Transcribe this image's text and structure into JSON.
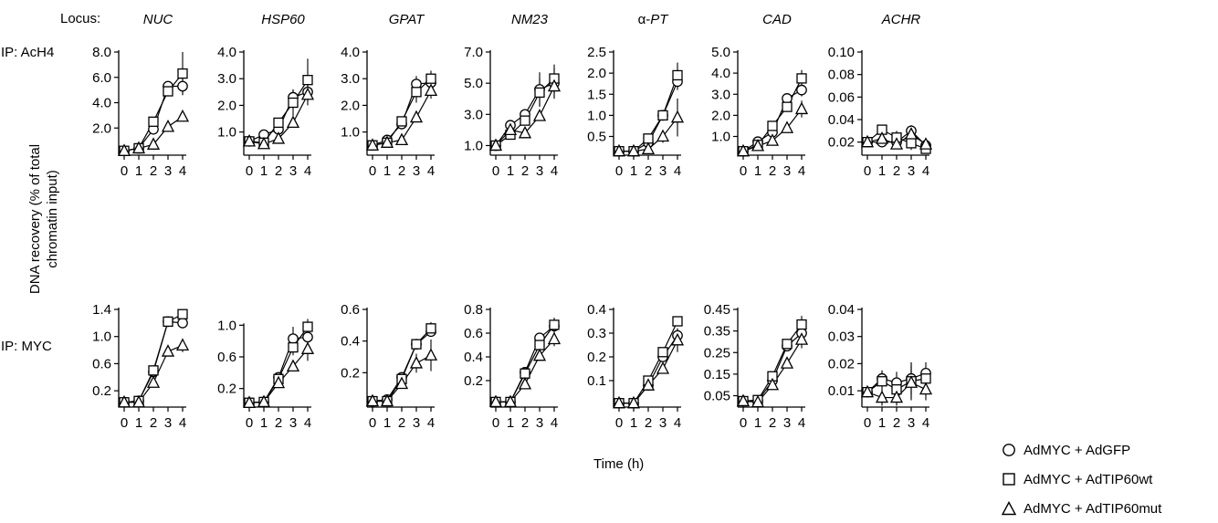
{
  "figure": {
    "locus_label": "Locus:",
    "ip_top_label": "IP: AcH4",
    "ip_bottom_label": "IP: MYC",
    "y_axis_label_line1": "DNA recovery (% of total",
    "y_axis_label_line2": "chromatin input)",
    "x_axis_label": "Time (h)",
    "loci": [
      "NUC",
      "HSP60",
      "GPAT",
      "NM23",
      "α-PT",
      "CAD",
      "ACHR"
    ],
    "legend": [
      {
        "marker": "circle",
        "label": "AdMYC + AdGFP"
      },
      {
        "marker": "square",
        "label": "AdMYC + AdTIP60wt"
      },
      {
        "marker": "triangle",
        "label": "AdMYC + AdTIP60mut"
      }
    ],
    "colors": {
      "line": "#000000",
      "marker_fill": "#ffffff"
    }
  },
  "chart_data": [
    {
      "type": "line",
      "row": "IP: AcH4",
      "locus": "NUC",
      "x": [
        0,
        1,
        2,
        3,
        4
      ],
      "ylim": [
        0,
        8.0
      ],
      "yticks": [
        2.0,
        4.0,
        6.0,
        8.0
      ],
      "ytick_labels": [
        "2.0",
        "4.0",
        "6.0",
        "8.0"
      ],
      "series": [
        {
          "name": "AdMYC + AdGFP",
          "values": [
            0.2,
            0.4,
            1.9,
            5.3,
            5.3
          ],
          "err": [
            0,
            0,
            0,
            0.3,
            0.7
          ]
        },
        {
          "name": "AdMYC + AdTIP60wt",
          "values": [
            0.2,
            0.4,
            2.5,
            4.9,
            6.3
          ],
          "err": [
            0,
            0,
            0,
            0.4,
            1.7
          ]
        },
        {
          "name": "AdMYC + AdTIP60mut",
          "values": [
            0.2,
            0.4,
            0.7,
            2.1,
            2.9
          ],
          "err": [
            0,
            0,
            0,
            0,
            0
          ]
        }
      ]
    },
    {
      "type": "line",
      "row": "IP: AcH4",
      "locus": "HSP60",
      "x": [
        0,
        1,
        2,
        3,
        4
      ],
      "ylim": [
        0.2,
        4.0
      ],
      "yticks": [
        1.0,
        2.0,
        3.0,
        4.0
      ],
      "ytick_labels": [
        "1.0",
        "2.0",
        "3.0",
        "4.0"
      ],
      "series": [
        {
          "name": "AdMYC + AdGFP",
          "values": [
            0.65,
            0.9,
            1.1,
            2.3,
            2.5
          ],
          "err": [
            0,
            0,
            0,
            0.3,
            0.3
          ]
        },
        {
          "name": "AdMYC + AdTIP60wt",
          "values": [
            0.65,
            0.6,
            1.35,
            2.1,
            2.95
          ],
          "err": [
            0,
            0,
            0,
            0.5,
            0.8
          ]
        },
        {
          "name": "AdMYC + AdTIP60mut",
          "values": [
            0.65,
            0.55,
            0.75,
            1.35,
            2.4
          ],
          "err": [
            0,
            0,
            0,
            0,
            0.4
          ]
        }
      ]
    },
    {
      "type": "line",
      "row": "IP: AcH4",
      "locus": "GPAT",
      "x": [
        0,
        1,
        2,
        3,
        4
      ],
      "ylim": [
        0.2,
        4.0
      ],
      "yticks": [
        1.0,
        2.0,
        3.0,
        4.0
      ],
      "ytick_labels": [
        "1.0",
        "2.0",
        "3.0",
        "4.0"
      ],
      "series": [
        {
          "name": "AdMYC + AdGFP",
          "values": [
            0.5,
            0.7,
            1.3,
            2.8,
            2.85
          ],
          "err": [
            0,
            0,
            0,
            0.3,
            0.3
          ]
        },
        {
          "name": "AdMYC + AdTIP60wt",
          "values": [
            0.5,
            0.6,
            1.4,
            2.5,
            3.0
          ],
          "err": [
            0,
            0,
            0,
            0.4,
            0.3
          ]
        },
        {
          "name": "AdMYC + AdTIP60mut",
          "values": [
            0.5,
            0.6,
            0.7,
            1.55,
            2.55
          ],
          "err": [
            0,
            0,
            0,
            0,
            0.3
          ]
        }
      ]
    },
    {
      "type": "line",
      "row": "IP: AcH4",
      "locus": "NM23",
      "x": [
        0,
        1,
        2,
        3,
        4
      ],
      "ylim": [
        0.5,
        7.0
      ],
      "yticks": [
        1.0,
        3.0,
        5.0,
        7.0
      ],
      "ytick_labels": [
        "1.0",
        "3.0",
        "5.0",
        "7.0"
      ],
      "series": [
        {
          "name": "AdMYC + AdGFP",
          "values": [
            1.0,
            2.3,
            3.0,
            4.6,
            5.0
          ],
          "err": [
            0,
            0,
            0,
            1.1,
            1.0
          ]
        },
        {
          "name": "AdMYC + AdTIP60wt",
          "values": [
            1.0,
            1.7,
            2.6,
            4.4,
            5.3
          ],
          "err": [
            0,
            0,
            0,
            0.9,
            0.9
          ]
        },
        {
          "name": "AdMYC + AdTIP60mut",
          "values": [
            1.0,
            2.0,
            1.8,
            2.9,
            4.8
          ],
          "err": [
            0,
            0,
            0,
            0,
            0.7
          ]
        }
      ]
    },
    {
      "type": "line",
      "row": "IP: AcH4",
      "locus": "α-PT",
      "x": [
        0,
        1,
        2,
        3,
        4
      ],
      "ylim": [
        0.1,
        2.5
      ],
      "yticks": [
        0.5,
        1.0,
        1.5,
        2.0,
        2.5
      ],
      "ytick_labels": [
        "0.5",
        "1.0",
        "1.5",
        "2.0",
        "2.5"
      ],
      "series": [
        {
          "name": "AdMYC + AdGFP",
          "values": [
            0.15,
            0.15,
            0.35,
            1.0,
            1.8
          ],
          "err": [
            0,
            0,
            0,
            0.08,
            0.2
          ]
        },
        {
          "name": "AdMYC + AdTIP60wt",
          "values": [
            0.15,
            0.15,
            0.45,
            1.0,
            1.95
          ],
          "err": [
            0,
            0,
            0,
            0.1,
            0.3
          ]
        },
        {
          "name": "AdMYC + AdTIP60mut",
          "values": [
            0.15,
            0.15,
            0.2,
            0.5,
            0.95
          ],
          "err": [
            0,
            0,
            0,
            0.15,
            0.45
          ]
        }
      ]
    },
    {
      "type": "line",
      "row": "IP: AcH4",
      "locus": "CAD",
      "x": [
        0,
        1,
        2,
        3,
        4
      ],
      "ylim": [
        0.2,
        5.0
      ],
      "yticks": [
        1.0,
        2.0,
        3.0,
        4.0,
        5.0
      ],
      "ytick_labels": [
        "1.0",
        "2.0",
        "3.0",
        "4.0",
        "5.0"
      ],
      "series": [
        {
          "name": "AdMYC + AdGFP",
          "values": [
            0.3,
            0.75,
            1.2,
            2.8,
            3.2
          ],
          "err": [
            0,
            0,
            0,
            0,
            0.3
          ]
        },
        {
          "name": "AdMYC + AdTIP60wt",
          "values": [
            0.3,
            0.6,
            1.5,
            2.4,
            3.75
          ],
          "err": [
            0,
            0,
            0,
            0.2,
            0.4
          ]
        },
        {
          "name": "AdMYC + AdTIP60mut",
          "values": [
            0.3,
            0.55,
            0.8,
            1.4,
            2.3
          ],
          "err": [
            0,
            0,
            0,
            0,
            0.4
          ]
        }
      ]
    },
    {
      "type": "line",
      "row": "IP: AcH4",
      "locus": "ACHR",
      "x": [
        0,
        1,
        2,
        3,
        4
      ],
      "ylim": [
        0.01,
        0.1
      ],
      "yticks": [
        0.02,
        0.04,
        0.06,
        0.08,
        0.1
      ],
      "ytick_labels": [
        "0.02",
        "0.04",
        "0.06",
        "0.08",
        "0.10"
      ],
      "series": [
        {
          "name": "AdMYC + AdGFP",
          "values": [
            0.02,
            0.02,
            0.02,
            0.03,
            0.017
          ],
          "err": [
            0,
            0,
            0.005,
            0.005,
            0.004
          ]
        },
        {
          "name": "AdMYC + AdTIP60wt",
          "values": [
            0.02,
            0.031,
            0.024,
            0.019,
            0.014
          ],
          "err": [
            0,
            0.004,
            0.006,
            0.006,
            0.003
          ]
        },
        {
          "name": "AdMYC + AdTIP60mut",
          "values": [
            0.02,
            0.023,
            0.018,
            0.027,
            0.018
          ],
          "err": [
            0,
            0.005,
            0.004,
            0.007,
            0.004
          ]
        }
      ]
    },
    {
      "type": "line",
      "row": "IP: MYC",
      "locus": "NUC",
      "x": [
        0,
        1,
        2,
        3,
        4
      ],
      "ylim": [
        0,
        1.4
      ],
      "yticks": [
        0.2,
        0.6,
        1.0,
        1.4
      ],
      "ytick_labels": [
        "0.2",
        "0.6",
        "1.0",
        "1.4"
      ],
      "series": [
        {
          "name": "AdMYC + AdGFP",
          "values": [
            0.03,
            0.05,
            0.48,
            1.22,
            1.2
          ],
          "err": [
            0,
            0,
            0,
            0,
            0.04
          ]
        },
        {
          "name": "AdMYC + AdTIP60wt",
          "values": [
            0.03,
            0.05,
            0.5,
            1.22,
            1.33
          ],
          "err": [
            0,
            0,
            0,
            0,
            0
          ]
        },
        {
          "name": "AdMYC + AdTIP60mut",
          "values": [
            0.03,
            0.03,
            0.32,
            0.78,
            0.87
          ],
          "err": [
            0,
            0,
            0,
            0,
            0.1
          ]
        }
      ]
    },
    {
      "type": "line",
      "row": "IP: MYC",
      "locus": "HSP60",
      "x": [
        0,
        1,
        2,
        3,
        4
      ],
      "ylim": [
        0,
        1.2
      ],
      "yticks": [
        0.2,
        0.6,
        1.0
      ],
      "ytick_labels": [
        "0.2",
        "0.6",
        "1.0"
      ],
      "series": [
        {
          "name": "AdMYC + AdGFP",
          "values": [
            0.02,
            0.03,
            0.34,
            0.83,
            0.85
          ],
          "err": [
            0,
            0,
            0,
            0.15,
            0.2
          ]
        },
        {
          "name": "AdMYC + AdTIP60wt",
          "values": [
            0.02,
            0.03,
            0.32,
            0.72,
            0.98
          ],
          "err": [
            0,
            0,
            0,
            0.1,
            0.1
          ]
        },
        {
          "name": "AdMYC + AdTIP60mut",
          "values": [
            0.02,
            0.03,
            0.27,
            0.48,
            0.7
          ],
          "err": [
            0,
            0,
            0,
            0,
            0.15
          ]
        }
      ]
    },
    {
      "type": "line",
      "row": "IP: MYC",
      "locus": "GPAT",
      "x": [
        0,
        1,
        2,
        3,
        4
      ],
      "ylim": [
        0,
        0.6
      ],
      "yticks": [
        0.2,
        0.4,
        0.6
      ],
      "ytick_labels": [
        "0.2",
        "0.4",
        "0.6"
      ],
      "series": [
        {
          "name": "AdMYC + AdGFP",
          "values": [
            0.02,
            0.03,
            0.17,
            0.38,
            0.46
          ],
          "err": [
            0,
            0,
            0,
            0,
            0.03
          ]
        },
        {
          "name": "AdMYC + AdTIP60wt",
          "values": [
            0.02,
            0.02,
            0.16,
            0.38,
            0.48
          ],
          "err": [
            0,
            0,
            0,
            0,
            0.04
          ]
        },
        {
          "name": "AdMYC + AdTIP60mut",
          "values": [
            0.02,
            0.02,
            0.13,
            0.26,
            0.31
          ],
          "err": [
            0,
            0,
            0,
            0.06,
            0.1
          ]
        }
      ]
    },
    {
      "type": "line",
      "row": "IP: MYC",
      "locus": "NM23",
      "x": [
        0,
        1,
        2,
        3,
        4
      ],
      "ylim": [
        0,
        0.8
      ],
      "yticks": [
        0.2,
        0.4,
        0.6,
        0.8
      ],
      "ytick_labels": [
        "0.2",
        "0.4",
        "0.6",
        "0.8"
      ],
      "series": [
        {
          "name": "AdMYC + AdGFP",
          "values": [
            0.02,
            0.02,
            0.27,
            0.56,
            0.66
          ],
          "err": [
            0,
            0,
            0,
            0,
            0.07
          ]
        },
        {
          "name": "AdMYC + AdTIP60wt",
          "values": [
            0.02,
            0.02,
            0.26,
            0.5,
            0.67
          ],
          "err": [
            0,
            0,
            0,
            0,
            0.05
          ]
        },
        {
          "name": "AdMYC + AdTIP60mut",
          "values": [
            0.02,
            0.02,
            0.17,
            0.41,
            0.55
          ],
          "err": [
            0,
            0,
            0,
            0,
            0.06
          ]
        }
      ]
    },
    {
      "type": "line",
      "row": "IP: MYC",
      "locus": "α-PT",
      "x": [
        0,
        1,
        2,
        3,
        4
      ],
      "ylim": [
        0,
        0.4
      ],
      "yticks": [
        0.1,
        0.2,
        0.3,
        0.4
      ],
      "ytick_labels": [
        "0.1",
        "0.2",
        "0.3",
        "0.4"
      ],
      "series": [
        {
          "name": "AdMYC + AdGFP",
          "values": [
            0.005,
            0.005,
            0.08,
            0.2,
            0.29
          ],
          "err": [
            0,
            0,
            0,
            0,
            0.03
          ]
        },
        {
          "name": "AdMYC + AdTIP60wt",
          "values": [
            0.005,
            0.005,
            0.1,
            0.22,
            0.35
          ],
          "err": [
            0,
            0,
            0,
            0,
            0
          ]
        },
        {
          "name": "AdMYC + AdTIP60mut",
          "values": [
            0.005,
            0.005,
            0.08,
            0.15,
            0.27
          ],
          "err": [
            0,
            0,
            0,
            0,
            0.05
          ]
        }
      ]
    },
    {
      "type": "line",
      "row": "IP: MYC",
      "locus": "CAD",
      "x": [
        0,
        1,
        2,
        3,
        4
      ],
      "ylim": [
        0.01,
        0.45
      ],
      "yticks": [
        0.05,
        0.15,
        0.25,
        0.35,
        0.45
      ],
      "ytick_labels": [
        "0.05",
        "0.15",
        "0.25",
        "0.35",
        "0.45"
      ],
      "series": [
        {
          "name": "AdMYC + AdGFP",
          "values": [
            0.025,
            0.025,
            0.12,
            0.28,
            0.34
          ],
          "err": [
            0,
            0,
            0,
            0.015,
            0.03
          ]
        },
        {
          "name": "AdMYC + AdTIP60wt",
          "values": [
            0.025,
            0.03,
            0.14,
            0.29,
            0.38
          ],
          "err": [
            0,
            0,
            0,
            0.01,
            0.04
          ]
        },
        {
          "name": "AdMYC + AdTIP60mut",
          "values": [
            0.025,
            0.02,
            0.1,
            0.2,
            0.31
          ],
          "err": [
            0,
            0,
            0,
            0.02,
            0.04
          ]
        }
      ]
    },
    {
      "type": "line",
      "row": "IP: MYC",
      "locus": "ACHR",
      "x": [
        0,
        1,
        2,
        3,
        4
      ],
      "ylim": [
        0.005,
        0.04
      ],
      "yticks": [
        0.01,
        0.02,
        0.03,
        0.04
      ],
      "ytick_labels": [
        "0.01",
        "0.02",
        "0.03",
        "0.04"
      ],
      "series": [
        {
          "name": "AdMYC + AdGFP",
          "values": [
            0.0095,
            0.0145,
            0.013,
            0.0145,
            0.0165
          ],
          "err": [
            0,
            0.003,
            0.004,
            0.006,
            0.004
          ]
        },
        {
          "name": "AdMYC + AdTIP60wt",
          "values": [
            0.0095,
            0.0135,
            0.0105,
            0.0135,
            0.0145
          ],
          "err": [
            0,
            0.004,
            0.004,
            0.007,
            0.004
          ]
        },
        {
          "name": "AdMYC + AdTIP60mut",
          "values": [
            0.0095,
            0.0075,
            0.0075,
            0.013,
            0.0105
          ],
          "err": [
            0,
            0.003,
            0.003,
            0.006,
            0.004
          ]
        }
      ]
    }
  ]
}
